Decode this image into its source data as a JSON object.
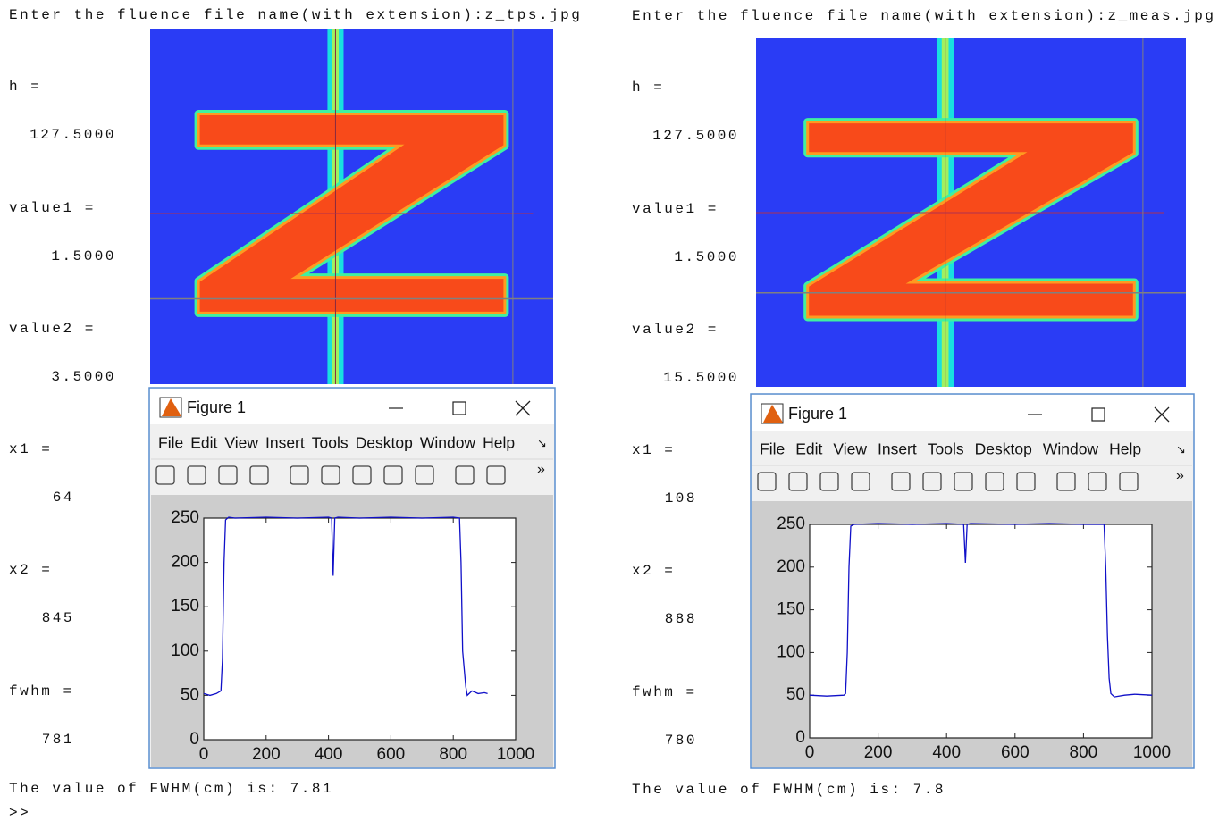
{
  "panels": [
    {
      "console": [
        "Enter the fluence file name(with extension):z_tps.jpg",
        "h =",
        "127.5000",
        "value1 =",
        "1.5000",
        "value2 =",
        "3.5000",
        "x1 =",
        "64",
        "x2 =",
        "845",
        "fwhm =",
        "781",
        "The value of FWHM(cm) is: 7.81",
        ">>"
      ],
      "figure": {
        "title": "Figure 1",
        "menu": [
          "File",
          "Edit",
          "View",
          "Insert",
          "Tools",
          "Desktop",
          "Window",
          "Help"
        ]
      }
    },
    {
      "console": [
        "Enter the fluence file name(with extension):z_meas.jpg",
        "h =",
        "127.5000",
        "value1 =",
        "1.5000",
        "value2 =",
        "15.5000",
        "x1 =",
        "108",
        "x2 =",
        "888",
        "fwhm =",
        "780",
        "The value of FWHM(cm) is: 7.8"
      ],
      "figure": {
        "title": "Figure 1",
        "menu": [
          "File",
          "Edit",
          "View",
          "Insert",
          "Tools",
          "Desktop",
          "Window",
          "Help"
        ]
      }
    }
  ],
  "chart_data": [
    {
      "type": "line",
      "x": [
        0,
        20,
        40,
        55,
        60,
        65,
        70,
        80,
        100,
        200,
        300,
        400,
        410,
        415,
        420,
        430,
        500,
        600,
        700,
        800,
        820,
        825,
        830,
        840,
        845,
        860,
        880,
        900,
        910
      ],
      "series": [
        {
          "color": "#1010c8",
          "values": [
            52,
            50,
            52,
            55,
            90,
            200,
            248,
            251,
            250,
            251,
            250,
            251,
            250,
            185,
            250,
            251,
            250,
            251,
            250,
            251,
            250,
            200,
            100,
            60,
            50,
            55,
            52,
            53,
            52
          ]
        }
      ],
      "xlim": [
        0,
        1000
      ],
      "xticks": [
        0,
        200,
        400,
        600,
        800,
        1000
      ],
      "ylim": [
        0,
        250
      ],
      "yticks": [
        0,
        50,
        100,
        150,
        200,
        250
      ]
    },
    {
      "type": "line",
      "x": [
        0,
        50,
        100,
        105,
        110,
        115,
        120,
        130,
        200,
        300,
        400,
        450,
        455,
        460,
        470,
        600,
        700,
        800,
        860,
        865,
        870,
        875,
        880,
        890,
        920,
        950,
        1000
      ],
      "series": [
        {
          "color": "#1010c8",
          "values": [
            50,
            49,
            50,
            52,
            100,
            200,
            248,
            250,
            251,
            250,
            251,
            250,
            205,
            250,
            251,
            250,
            251,
            250,
            250,
            200,
            120,
            70,
            52,
            48,
            50,
            51,
            50
          ]
        }
      ],
      "xlim": [
        0,
        1000
      ],
      "xticks": [
        0,
        200,
        400,
        600,
        800,
        1000
      ],
      "ylim": [
        0,
        250
      ],
      "yticks": [
        0,
        50,
        100,
        150,
        200,
        250
      ]
    }
  ]
}
